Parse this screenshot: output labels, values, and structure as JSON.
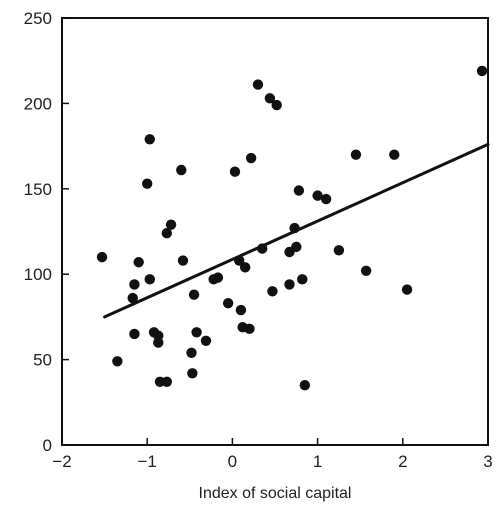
{
  "chart_data": {
    "type": "scatter",
    "title": "",
    "xlabel": "Index of social capital",
    "ylabel": "",
    "xlim": [
      -2,
      3
    ],
    "ylim": [
      0,
      250
    ],
    "xticks": [
      -2,
      -1,
      0,
      1,
      2,
      3
    ],
    "xtick_labels": [
      "−2",
      "−1",
      "0",
      "1",
      "2",
      "3"
    ],
    "yticks": [
      0,
      50,
      100,
      150,
      200,
      250
    ],
    "ytick_labels": [
      "0",
      "50",
      "100",
      "150",
      "200",
      "250"
    ],
    "grid": false,
    "marker_color": "#111111",
    "line_color": "#111111",
    "points": [
      {
        "x": -1.53,
        "y": 110
      },
      {
        "x": -1.35,
        "y": 49
      },
      {
        "x": -1.17,
        "y": 86
      },
      {
        "x": -1.15,
        "y": 94
      },
      {
        "x": -1.15,
        "y": 65
      },
      {
        "x": -1.1,
        "y": 107
      },
      {
        "x": -1.0,
        "y": 153
      },
      {
        "x": -0.97,
        "y": 179
      },
      {
        "x": -0.97,
        "y": 97
      },
      {
        "x": -0.92,
        "y": 66
      },
      {
        "x": -0.87,
        "y": 64
      },
      {
        "x": -0.87,
        "y": 60
      },
      {
        "x": -0.85,
        "y": 37
      },
      {
        "x": -0.77,
        "y": 37
      },
      {
        "x": -0.77,
        "y": 124
      },
      {
        "x": -0.72,
        "y": 129
      },
      {
        "x": -0.6,
        "y": 161
      },
      {
        "x": -0.58,
        "y": 108
      },
      {
        "x": -0.48,
        "y": 54
      },
      {
        "x": -0.47,
        "y": 42
      },
      {
        "x": -0.45,
        "y": 88
      },
      {
        "x": -0.42,
        "y": 66
      },
      {
        "x": -0.31,
        "y": 61
      },
      {
        "x": -0.22,
        "y": 97
      },
      {
        "x": -0.17,
        "y": 98
      },
      {
        "x": -0.05,
        "y": 83
      },
      {
        "x": 0.03,
        "y": 160
      },
      {
        "x": 0.08,
        "y": 108
      },
      {
        "x": 0.1,
        "y": 79
      },
      {
        "x": 0.12,
        "y": 69
      },
      {
        "x": 0.15,
        "y": 104
      },
      {
        "x": 0.2,
        "y": 68
      },
      {
        "x": 0.22,
        "y": 168
      },
      {
        "x": 0.3,
        "y": 211
      },
      {
        "x": 0.35,
        "y": 115
      },
      {
        "x": 0.44,
        "y": 203
      },
      {
        "x": 0.47,
        "y": 90
      },
      {
        "x": 0.52,
        "y": 199
      },
      {
        "x": 0.67,
        "y": 94
      },
      {
        "x": 0.67,
        "y": 113
      },
      {
        "x": 0.73,
        "y": 127
      },
      {
        "x": 0.75,
        "y": 116
      },
      {
        "x": 0.78,
        "y": 149
      },
      {
        "x": 0.82,
        "y": 97
      },
      {
        "x": 0.85,
        "y": 35
      },
      {
        "x": 1.0,
        "y": 146
      },
      {
        "x": 1.1,
        "y": 144
      },
      {
        "x": 1.25,
        "y": 114
      },
      {
        "x": 1.45,
        "y": 170
      },
      {
        "x": 1.57,
        "y": 102
      },
      {
        "x": 1.9,
        "y": 170
      },
      {
        "x": 2.05,
        "y": 91
      },
      {
        "x": 2.93,
        "y": 219
      }
    ],
    "trend_line": {
      "x": [
        -1.5,
        3.0
      ],
      "y": [
        75,
        176
      ]
    }
  }
}
